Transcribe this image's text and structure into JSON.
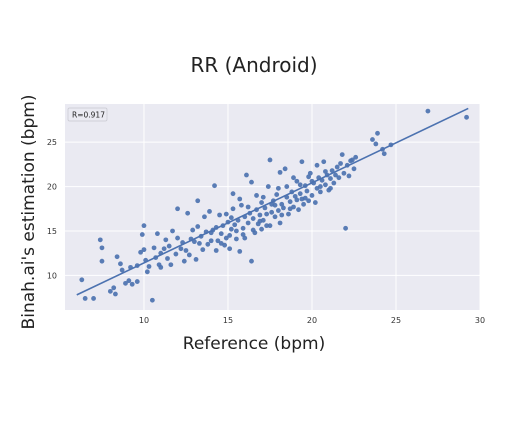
{
  "chart_data": {
    "type": "scatter",
    "title": "RR (Android)",
    "xlabel": "Reference (bpm)",
    "ylabel": "Binah.ai's estimation (bpm)",
    "annotation": "R=0.917",
    "xlim": [
      5.3,
      30.0
    ],
    "ylim": [
      6.1,
      29.3
    ],
    "xticks": [
      10,
      15,
      20,
      25,
      30
    ],
    "yticks": [
      10,
      15,
      20,
      25
    ],
    "grid": true,
    "background": "#eaeaf2",
    "point_color": "#4c72b0",
    "regression_line": {
      "x": [
        6.0,
        29.3
      ],
      "y": [
        7.8,
        28.8
      ],
      "color": "#4c72b0"
    },
    "points": [
      [
        6.3,
        9.5
      ],
      [
        6.5,
        7.4
      ],
      [
        7.0,
        7.4
      ],
      [
        7.4,
        14.0
      ],
      [
        7.5,
        13.1
      ],
      [
        7.5,
        11.6
      ],
      [
        8.0,
        8.2
      ],
      [
        8.2,
        8.6
      ],
      [
        8.3,
        7.9
      ],
      [
        8.4,
        12.1
      ],
      [
        8.7,
        10.6
      ],
      [
        8.9,
        9.1
      ],
      [
        9.1,
        9.4
      ],
      [
        9.3,
        9.0
      ],
      [
        9.6,
        9.3
      ],
      [
        9.6,
        11.1
      ],
      [
        9.8,
        12.6
      ],
      [
        9.9,
        14.6
      ],
      [
        10.0,
        15.6
      ],
      [
        10.0,
        12.9
      ],
      [
        10.2,
        10.4
      ],
      [
        10.3,
        11.0
      ],
      [
        10.5,
        7.2
      ],
      [
        10.6,
        13.1
      ],
      [
        10.7,
        12.0
      ],
      [
        10.9,
        11.2
      ],
      [
        11.0,
        10.9
      ],
      [
        11.0,
        12.5
      ],
      [
        11.3,
        14.0
      ],
      [
        11.4,
        11.9
      ],
      [
        11.5,
        13.3
      ],
      [
        11.6,
        11.2
      ],
      [
        11.9,
        12.4
      ],
      [
        12.0,
        14.2
      ],
      [
        12.0,
        17.5
      ],
      [
        12.2,
        13.0
      ],
      [
        12.4,
        11.6
      ],
      [
        12.5,
        12.8
      ],
      [
        12.6,
        17.0
      ],
      [
        12.7,
        12.3
      ],
      [
        12.8,
        14.1
      ],
      [
        13.0,
        13.8
      ],
      [
        13.1,
        11.8
      ],
      [
        13.2,
        15.5
      ],
      [
        13.3,
        13.6
      ],
      [
        13.5,
        12.9
      ],
      [
        13.7,
        14.9
      ],
      [
        13.8,
        13.5
      ],
      [
        13.9,
        17.2
      ],
      [
        14.0,
        13.9
      ],
      [
        14.1,
        15.1
      ],
      [
        14.2,
        20.1
      ],
      [
        14.3,
        12.8
      ],
      [
        14.4,
        13.9
      ],
      [
        14.5,
        16.8
      ],
      [
        14.6,
        14.7
      ],
      [
        14.7,
        15.6
      ],
      [
        14.8,
        13.4
      ],
      [
        14.9,
        14.2
      ],
      [
        15.0,
        16.0
      ],
      [
        15.1,
        14.5
      ],
      [
        15.1,
        13.0
      ],
      [
        15.2,
        15.2
      ],
      [
        15.3,
        17.5
      ],
      [
        15.4,
        15.7
      ],
      [
        15.5,
        14.1
      ],
      [
        15.6,
        16.2
      ],
      [
        15.7,
        12.7
      ],
      [
        15.8,
        17.9
      ],
      [
        15.9,
        15.3
      ],
      [
        16.0,
        16.6
      ],
      [
        16.0,
        14.2
      ],
      [
        16.1,
        21.3
      ],
      [
        16.2,
        15.9
      ],
      [
        16.3,
        17.0
      ],
      [
        16.4,
        11.6
      ],
      [
        16.5,
        16.4
      ],
      [
        16.6,
        14.8
      ],
      [
        16.7,
        17.4
      ],
      [
        16.8,
        15.8
      ],
      [
        16.9,
        16.8
      ],
      [
        17.0,
        18.2
      ],
      [
        17.0,
        15.2
      ],
      [
        17.1,
        16.2
      ],
      [
        17.2,
        17.6
      ],
      [
        17.3,
        16.9
      ],
      [
        17.4,
        20.0
      ],
      [
        17.5,
        15.6
      ],
      [
        17.6,
        17.1
      ],
      [
        17.7,
        18.4
      ],
      [
        17.8,
        16.6
      ],
      [
        17.9,
        19.1
      ],
      [
        18.0,
        17.3
      ],
      [
        18.1,
        15.9
      ],
      [
        18.2,
        18.0
      ],
      [
        18.3,
        17.6
      ],
      [
        18.4,
        22.0
      ],
      [
        18.5,
        18.8
      ],
      [
        18.6,
        16.9
      ],
      [
        18.7,
        18.3
      ],
      [
        18.8,
        19.4
      ],
      [
        18.9,
        17.7
      ],
      [
        19.0,
        18.9
      ],
      [
        19.1,
        20.6
      ],
      [
        19.2,
        17.4
      ],
      [
        19.3,
        19.2
      ],
      [
        19.4,
        18.6
      ],
      [
        19.5,
        18.0
      ],
      [
        19.6,
        20.1
      ],
      [
        19.7,
        19.5
      ],
      [
        19.8,
        18.4
      ],
      [
        19.9,
        21.5
      ],
      [
        20.0,
        19.0
      ],
      [
        20.1,
        20.4
      ],
      [
        20.2,
        18.2
      ],
      [
        20.3,
        19.8
      ],
      [
        20.4,
        21.0
      ],
      [
        20.5,
        19.4
      ],
      [
        20.6,
        20.7
      ],
      [
        20.7,
        22.8
      ],
      [
        20.8,
        20.2
      ],
      [
        20.9,
        21.3
      ],
      [
        21.0,
        19.6
      ],
      [
        21.1,
        20.9
      ],
      [
        21.2,
        21.8
      ],
      [
        21.3,
        20.4
      ],
      [
        21.5,
        22.2
      ],
      [
        21.6,
        21.0
      ],
      [
        21.8,
        23.6
      ],
      [
        21.9,
        21.5
      ],
      [
        22.0,
        15.3
      ],
      [
        22.1,
        22.4
      ],
      [
        22.2,
        21.2
      ],
      [
        22.4,
        23.0
      ],
      [
        22.5,
        22.0
      ],
      [
        23.6,
        25.3
      ],
      [
        23.8,
        24.8
      ],
      [
        23.9,
        26.0
      ],
      [
        24.2,
        24.2
      ],
      [
        24.3,
        23.7
      ],
      [
        24.7,
        24.7
      ],
      [
        26.9,
        28.5
      ],
      [
        29.2,
        27.8
      ],
      [
        8.6,
        11.3
      ],
      [
        9.2,
        10.9
      ],
      [
        10.1,
        11.7
      ],
      [
        10.8,
        14.7
      ],
      [
        11.2,
        13.0
      ],
      [
        11.7,
        15.0
      ],
      [
        12.3,
        13.7
      ],
      [
        12.9,
        15.1
      ],
      [
        13.4,
        14.4
      ],
      [
        13.6,
        16.6
      ],
      [
        14.0,
        14.8
      ],
      [
        14.3,
        15.4
      ],
      [
        14.6,
        13.6
      ],
      [
        14.9,
        16.9
      ],
      [
        15.2,
        16.5
      ],
      [
        15.5,
        15.0
      ],
      [
        15.7,
        18.6
      ],
      [
        15.9,
        14.6
      ],
      [
        16.2,
        17.7
      ],
      [
        16.5,
        15.1
      ],
      [
        16.7,
        19.0
      ],
      [
        16.9,
        16.1
      ],
      [
        17.1,
        18.8
      ],
      [
        17.3,
        15.6
      ],
      [
        17.6,
        18.0
      ],
      [
        17.8,
        17.9
      ],
      [
        18.0,
        19.8
      ],
      [
        18.2,
        16.8
      ],
      [
        18.5,
        20.0
      ],
      [
        18.7,
        17.5
      ],
      [
        18.9,
        21.0
      ],
      [
        19.1,
        18.5
      ],
      [
        19.3,
        20.2
      ],
      [
        19.6,
        18.7
      ],
      [
        19.8,
        21.1
      ],
      [
        20.0,
        20.6
      ],
      [
        20.3,
        22.4
      ],
      [
        20.5,
        20.0
      ],
      [
        20.8,
        21.7
      ],
      [
        21.1,
        19.8
      ],
      [
        21.4,
        21.3
      ],
      [
        21.7,
        22.6
      ],
      [
        22.3,
        22.9
      ],
      [
        22.6,
        23.3
      ],
      [
        13.2,
        18.4
      ],
      [
        17.5,
        23.0
      ],
      [
        19.4,
        22.8
      ],
      [
        16.4,
        20.5
      ],
      [
        15.3,
        19.2
      ],
      [
        18.1,
        21.6
      ]
    ]
  }
}
